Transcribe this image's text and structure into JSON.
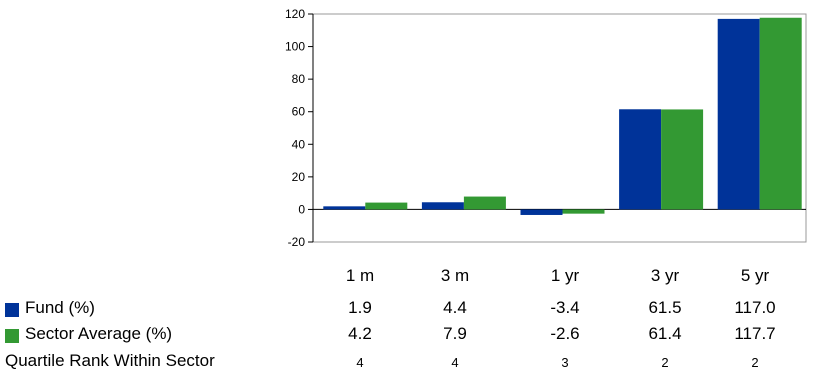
{
  "chart_data": {
    "type": "bar",
    "categories": [
      "1 m",
      "3 m",
      "1 yr",
      "3 yr",
      "5 yr"
    ],
    "series": [
      {
        "name": "Fund (%)",
        "values": [
          1.9,
          4.4,
          -3.4,
          61.5,
          117.0
        ],
        "color": "#003399"
      },
      {
        "name": "Sector Average (%)",
        "values": [
          4.2,
          7.9,
          -2.6,
          61.4,
          117.7
        ],
        "color": "#339933"
      }
    ],
    "ylim": [
      -20,
      120
    ],
    "yticks": [
      120,
      100,
      80,
      60,
      40,
      20,
      0,
      -20
    ],
    "grid": false,
    "legend": "bottom-left",
    "title": "",
    "xlabel": "",
    "ylabel": ""
  },
  "table": {
    "headers": [
      "1 m",
      "3 m",
      "1 yr",
      "3 yr",
      "5 yr"
    ],
    "rows": [
      {
        "label": "Fund (%)",
        "values": [
          "1.9",
          "4.4",
          "-3.4",
          "61.5",
          "117.0"
        ]
      },
      {
        "label": "Sector Average (%)",
        "values": [
          "4.2",
          "7.9",
          "-2.6",
          "61.4",
          "117.7"
        ]
      }
    ],
    "rank": {
      "label": "Quartile Rank Within Sector",
      "values": [
        "4",
        "4",
        "3",
        "2",
        "2"
      ]
    }
  }
}
